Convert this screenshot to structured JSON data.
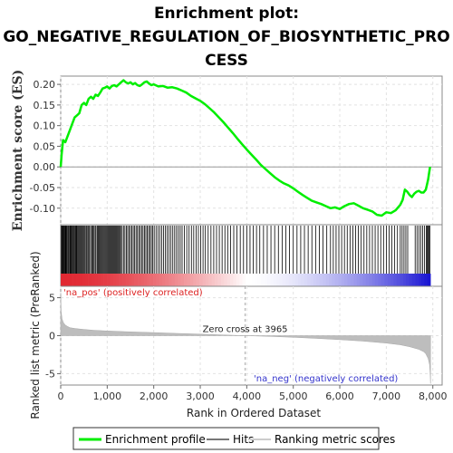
{
  "title_line1": "Enrichment plot:",
  "title_line2": "GO_NEGATIVE_REGULATION_OF_BIOSYNTHETIC_PRO",
  "title_line3": "CESS",
  "chart_data": {
    "type": "line",
    "es_panel": {
      "ylabel": "Enrichment score (ES)",
      "ylim": [
        -0.14,
        0.22
      ],
      "yticks": [
        "0.20",
        "0.15",
        "0.10",
        "0.05",
        "0.00",
        "-0.05",
        "-0.10"
      ],
      "ytick_values": [
        0.2,
        0.15,
        0.1,
        0.05,
        0.0,
        -0.05,
        -0.1
      ],
      "series": [
        {
          "name": "Enrichment profile",
          "color": "#00ee00",
          "x": [
            0,
            20,
            50,
            100,
            150,
            200,
            250,
            300,
            350,
            400,
            450,
            500,
            550,
            600,
            650,
            700,
            750,
            800,
            850,
            900,
            950,
            1000,
            1050,
            1100,
            1150,
            1200,
            1250,
            1300,
            1350,
            1400,
            1450,
            1500,
            1550,
            1600,
            1650,
            1700,
            1750,
            1800,
            1850,
            1900,
            1950,
            2000,
            2100,
            2200,
            2300,
            2400,
            2500,
            2600,
            2700,
            2800,
            2900,
            3000,
            3100,
            3200,
            3300,
            3400,
            3500,
            3600,
            3700,
            3800,
            3900,
            4000,
            4100,
            4200,
            4300,
            4400,
            4500,
            4600,
            4700,
            4800,
            4900,
            5000,
            5100,
            5200,
            5300,
            5400,
            5500,
            5600,
            5700,
            5800,
            5900,
            6000,
            6100,
            6200,
            6300,
            6400,
            6500,
            6600,
            6700,
            6800,
            6900,
            7000,
            7100,
            7200,
            7300,
            7350,
            7400,
            7450,
            7500,
            7550,
            7600,
            7650,
            7700,
            7750,
            7800,
            7850,
            7880,
            7900,
            7920,
            7940
          ],
          "y": [
            0.0,
            0.03,
            0.065,
            0.06,
            0.075,
            0.09,
            0.105,
            0.12,
            0.125,
            0.13,
            0.15,
            0.155,
            0.15,
            0.165,
            0.17,
            0.165,
            0.175,
            0.172,
            0.18,
            0.19,
            0.192,
            0.195,
            0.19,
            0.196,
            0.198,
            0.195,
            0.2,
            0.205,
            0.21,
            0.205,
            0.202,
            0.205,
            0.2,
            0.203,
            0.198,
            0.196,
            0.2,
            0.205,
            0.207,
            0.202,
            0.198,
            0.2,
            0.195,
            0.196,
            0.192,
            0.193,
            0.19,
            0.185,
            0.18,
            0.172,
            0.166,
            0.16,
            0.152,
            0.142,
            0.132,
            0.12,
            0.108,
            0.095,
            0.082,
            0.068,
            0.055,
            0.042,
            0.03,
            0.018,
            0.005,
            -0.005,
            -0.015,
            -0.025,
            -0.033,
            -0.04,
            -0.045,
            -0.052,
            -0.06,
            -0.068,
            -0.075,
            -0.082,
            -0.086,
            -0.09,
            -0.095,
            -0.1,
            -0.098,
            -0.102,
            -0.095,
            -0.09,
            -0.088,
            -0.094,
            -0.1,
            -0.104,
            -0.108,
            -0.116,
            -0.118,
            -0.11,
            -0.112,
            -0.105,
            -0.092,
            -0.08,
            -0.055,
            -0.06,
            -0.068,
            -0.073,
            -0.065,
            -0.06,
            -0.058,
            -0.062,
            -0.062,
            -0.055,
            -0.04,
            -0.03,
            -0.015,
            0.0
          ]
        }
      ]
    },
    "hits_panel": {
      "hit_positions": [
        15,
        25,
        40,
        55,
        70,
        85,
        100,
        115,
        130,
        150,
        165,
        180,
        200,
        215,
        230,
        250,
        265,
        280,
        300,
        320,
        335,
        350,
        370,
        390,
        410,
        430,
        450,
        470,
        490,
        510,
        530,
        555,
        580,
        600,
        620,
        645,
        670,
        690,
        715,
        740,
        760,
        790,
        810,
        830,
        850,
        870,
        890,
        910,
        930,
        950,
        970,
        990,
        1010,
        1030,
        1050,
        1070,
        1090,
        1110,
        1130,
        1150,
        1170,
        1190,
        1210,
        1230,
        1250,
        1270,
        1290,
        1320,
        1350,
        1380,
        1410,
        1440,
        1470,
        1500,
        1530,
        1560,
        1590,
        1620,
        1650,
        1680,
        1710,
        1740,
        1770,
        1800,
        1830,
        1860,
        1890,
        1920,
        1950,
        1980,
        2010,
        2050,
        2090,
        2130,
        2170,
        2210,
        2250,
        2290,
        2330,
        2370,
        2410,
        2450,
        2490,
        2530,
        2570,
        2610,
        2660,
        2710,
        2760,
        2810,
        2860,
        2910,
        2960,
        3010,
        3060,
        3110,
        3170,
        3230,
        3290,
        3350,
        3410,
        3470,
        3530,
        3590,
        3650,
        3720,
        3790,
        3860,
        3930,
        4000,
        4070,
        4140,
        4210,
        4280,
        4360,
        4440,
        4520,
        4600,
        4680,
        4760,
        4840,
        4920,
        5000,
        5080,
        5160,
        5240,
        5320,
        5400,
        5480,
        5560,
        5640,
        5720,
        5800,
        5860,
        5920,
        5980,
        6040,
        6100,
        6160,
        6220,
        6280,
        6340,
        6400,
        6460,
        6520,
        6580,
        6640,
        6700,
        6760,
        6820,
        6880,
        6940,
        7000,
        7060,
        7120,
        7180,
        7240,
        7300,
        7340,
        7380,
        7420,
        7460,
        7620,
        7660,
        7700,
        7740,
        7780,
        7820,
        7860,
        7880,
        7900,
        7920,
        7935
      ]
    },
    "rank_panel": {
      "ylabel": "Ranked list metric (PreRanked)",
      "ylim": [
        -6.5,
        6.5
      ],
      "yticks": [
        "5",
        "0",
        "-5"
      ],
      "ytick_values": [
        5,
        0,
        -5
      ],
      "x": [
        0,
        10,
        30,
        60,
        100,
        150,
        200,
        300,
        400,
        500,
        700,
        1000,
        1500,
        2000,
        2500,
        3000,
        3500,
        3965,
        4500,
        5000,
        5500,
        6000,
        6500,
        7000,
        7300,
        7500,
        7700,
        7800,
        7850,
        7900,
        7930,
        7945,
        7950
      ],
      "y": [
        5.6,
        3.2,
        2.2,
        1.7,
        1.4,
        1.2,
        1.05,
        0.95,
        0.88,
        0.82,
        0.72,
        0.62,
        0.5,
        0.4,
        0.3,
        0.2,
        0.1,
        0.0,
        -0.1,
        -0.22,
        -0.36,
        -0.52,
        -0.72,
        -0.98,
        -1.2,
        -1.45,
        -1.8,
        -2.1,
        -2.4,
        -3.0,
        -3.8,
        -5.2,
        -6.3
      ],
      "zero_cross_label": "Zero cross at 3965",
      "zero_cross": 3965,
      "pos_label": "'na_pos' (positively correlated)",
      "neg_label": "'na_neg' (negatively correlated)"
    },
    "xlabel": "Rank in Ordered Dataset",
    "xlim": [
      0,
      8200
    ],
    "xticks": [
      "0",
      "1,000",
      "2,000",
      "3,000",
      "4,000",
      "5,000",
      "6,000",
      "7,000",
      "8,000"
    ],
    "xtick_values": [
      0,
      1000,
      2000,
      3000,
      4000,
      5000,
      6000,
      7000,
      8000
    ],
    "n_genes": 7950,
    "legend": [
      {
        "label": "Enrichment profile",
        "color": "#00ee00"
      },
      {
        "label": "Hits",
        "color": "#777777"
      },
      {
        "label": "Ranking metric scores",
        "color": "#cccccc"
      }
    ],
    "grid": true,
    "legend_position": "bottom"
  }
}
